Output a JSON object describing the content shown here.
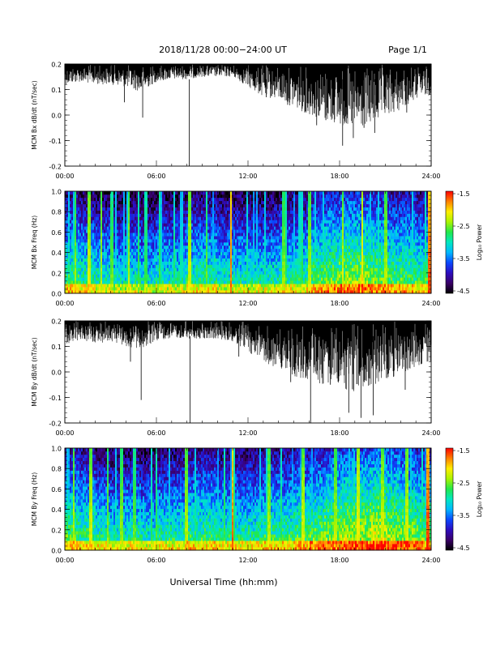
{
  "header": {
    "title": "2018/11/28   00:00−24:00 UT",
    "page_label": "Page 1/1"
  },
  "xaxis": {
    "label": "Universal Time (hh:mm)",
    "ticks": [
      "00:00",
      "06:00",
      "12:00",
      "18:00",
      "24:00"
    ],
    "range_hours": [
      0,
      24
    ]
  },
  "colorbar": {
    "label": "Log₁₀ Power",
    "ticks": [
      "-1.5",
      "-2.5",
      "-3.5",
      "-4.5"
    ],
    "range": [
      -4.5,
      -1.5
    ],
    "colors": [
      "#000000",
      "#3a0068",
      "#2d0dbf",
      "#0a48ff",
      "#00b8ff",
      "#00e8c0",
      "#22e84a",
      "#aaf400",
      "#ffee00",
      "#ff8000",
      "#ff0000"
    ]
  },
  "chart_data": [
    {
      "type": "line",
      "title": "",
      "ylabel": "MCM Bx dB/dt (nT/sec)",
      "ylim": [
        -0.2,
        0.2
      ],
      "yticks": [
        "0.2",
        "0.1",
        "0.0",
        "-0.1",
        "-0.2"
      ],
      "color": "#000000",
      "envelope": {
        "hours": [
          0,
          1,
          2,
          3,
          4,
          5,
          6,
          7,
          8,
          9,
          10,
          11,
          12,
          13,
          14,
          15,
          16,
          17,
          18,
          19,
          20,
          21,
          22,
          23,
          24
        ],
        "max": [
          0.2,
          0.2,
          0.2,
          0.2,
          0.2,
          0.2,
          0.2,
          0.2,
          0.2,
          0.2,
          0.2,
          0.2,
          0.2,
          0.2,
          0.2,
          0.2,
          0.2,
          0.2,
          0.2,
          0.2,
          0.2,
          0.2,
          0.2,
          0.2,
          0.2
        ],
        "min": [
          0.12,
          0.13,
          0.12,
          0.12,
          0.11,
          0.09,
          0.13,
          0.14,
          0.14,
          0.15,
          0.15,
          0.15,
          0.11,
          0.07,
          0.06,
          0.03,
          0.0,
          -0.02,
          -0.04,
          -0.06,
          -0.04,
          -0.01,
          0.02,
          0.06,
          0.08
        ]
      },
      "spikes": [
        {
          "hour": 3.9,
          "min": 0.05
        },
        {
          "hour": 5.1,
          "min": -0.01
        },
        {
          "hour": 8.15,
          "min": -0.2
        },
        {
          "hour": 13.2,
          "min": 0.07
        },
        {
          "hour": 14.6,
          "min": 0.04
        },
        {
          "hour": 16.5,
          "min": -0.04
        },
        {
          "hour": 17.1,
          "min": -0.02
        },
        {
          "hour": 18.2,
          "min": -0.12
        },
        {
          "hour": 18.9,
          "min": -0.09
        },
        {
          "hour": 19.6,
          "min": -0.05
        },
        {
          "hour": 20.3,
          "min": -0.07
        },
        {
          "hour": 22.4,
          "min": 0.01
        }
      ]
    },
    {
      "type": "heatmap",
      "title": "",
      "ylabel": "MCM Bx Freq (Hz)",
      "ylim": [
        0.0,
        1.0
      ],
      "yticks": [
        "1.0",
        "0.8",
        "0.6",
        "0.4",
        "0.2",
        "0.0"
      ],
      "zlim": [
        -4.5,
        -1.5
      ],
      "base_levels": [
        -3.3,
        -3.4,
        -3.5,
        -3.6,
        -3.5,
        -3.6,
        -3.5,
        -3.5,
        -3.4,
        -3.4,
        -3.5,
        -3.5,
        -3.5,
        -3.5,
        -3.4,
        -3.4,
        -3.2,
        -3.1,
        -3.0,
        -3.0,
        -3.1,
        -3.2,
        -3.2,
        -3.3
      ],
      "bursts": [
        {
          "hour": 0.7,
          "level": -2.4
        },
        {
          "hour": 1.6,
          "level": -2.2
        },
        {
          "hour": 2.4,
          "level": -2.3
        },
        {
          "hour": 3.1,
          "level": -2.5
        },
        {
          "hour": 4.2,
          "level": -2.3
        },
        {
          "hour": 5.3,
          "level": -2.6
        },
        {
          "hour": 6.2,
          "level": -2.6
        },
        {
          "hour": 8.2,
          "level": -2.2
        },
        {
          "hour": 9.3,
          "level": -2.5
        },
        {
          "hour": 10.9,
          "level": -1.7
        },
        {
          "hour": 14.3,
          "level": -2.4
        },
        {
          "hour": 16.0,
          "level": -2.3
        },
        {
          "hour": 18.2,
          "level": -2.2
        },
        {
          "hour": 19.5,
          "level": -2.0
        },
        {
          "hour": 21.0,
          "level": -2.3
        },
        {
          "hour": 23.9,
          "level": -1.6
        }
      ]
    },
    {
      "type": "line",
      "title": "",
      "ylabel": "MCM By dB/dt (nT/sec)",
      "ylim": [
        -0.2,
        0.2
      ],
      "yticks": [
        "0.2",
        "0.1",
        "0.0",
        "-0.1",
        "-0.2"
      ],
      "color": "#000000",
      "envelope": {
        "hours": [
          0,
          1,
          2,
          3,
          4,
          5,
          6,
          7,
          8,
          9,
          10,
          11,
          12,
          13,
          14,
          15,
          16,
          17,
          18,
          19,
          20,
          21,
          22,
          23,
          24
        ],
        "max": [
          0.2,
          0.2,
          0.2,
          0.2,
          0.2,
          0.2,
          0.2,
          0.2,
          0.2,
          0.2,
          0.2,
          0.2,
          0.2,
          0.2,
          0.2,
          0.2,
          0.2,
          0.2,
          0.2,
          0.2,
          0.2,
          0.2,
          0.2,
          0.2,
          0.2
        ],
        "min": [
          0.11,
          0.12,
          0.11,
          0.12,
          0.1,
          0.09,
          0.12,
          0.13,
          0.13,
          0.13,
          0.13,
          0.12,
          0.08,
          0.04,
          0.01,
          -0.02,
          -0.04,
          -0.06,
          -0.07,
          -0.08,
          -0.06,
          -0.03,
          -0.01,
          0.02,
          0.04
        ]
      },
      "spikes": [
        {
          "hour": 4.3,
          "min": 0.04
        },
        {
          "hour": 5.0,
          "min": -0.11
        },
        {
          "hour": 8.2,
          "min": -0.2
        },
        {
          "hour": 11.4,
          "min": 0.06
        },
        {
          "hour": 14.8,
          "min": -0.04
        },
        {
          "hour": 16.1,
          "min": -0.2
        },
        {
          "hour": 17.4,
          "min": -0.05
        },
        {
          "hour": 18.6,
          "min": -0.16
        },
        {
          "hour": 19.4,
          "min": -0.18
        },
        {
          "hour": 20.2,
          "min": -0.17
        },
        {
          "hour": 22.3,
          "min": -0.07
        }
      ]
    },
    {
      "type": "heatmap",
      "title": "",
      "ylabel": "MCM By Freq (Hz)",
      "ylim": [
        0.0,
        1.0
      ],
      "yticks": [
        "1.0",
        "0.8",
        "0.6",
        "0.4",
        "0.2",
        "0.0"
      ],
      "zlim": [
        -4.5,
        -1.5
      ],
      "base_levels": [
        -3.2,
        -3.3,
        -3.4,
        -3.5,
        -3.4,
        -3.5,
        -3.4,
        -3.4,
        -3.3,
        -3.3,
        -3.4,
        -3.4,
        -3.4,
        -3.3,
        -3.3,
        -3.2,
        -3.1,
        -3.0,
        -2.9,
        -2.9,
        -2.8,
        -2.9,
        -3.0,
        -3.1
      ],
      "bursts": [
        {
          "hour": 0.6,
          "level": -2.3
        },
        {
          "hour": 1.7,
          "level": -2.2
        },
        {
          "hour": 2.8,
          "level": -2.4
        },
        {
          "hour": 3.7,
          "level": -2.4
        },
        {
          "hour": 4.6,
          "level": -2.5
        },
        {
          "hour": 6.0,
          "level": -2.6
        },
        {
          "hour": 8.0,
          "level": -2.3
        },
        {
          "hour": 11.0,
          "level": -1.7
        },
        {
          "hour": 13.4,
          "level": -2.3
        },
        {
          "hour": 15.6,
          "level": -2.2
        },
        {
          "hour": 17.7,
          "level": -2.3
        },
        {
          "hour": 19.2,
          "level": -2.1
        },
        {
          "hour": 20.8,
          "level": -2.2
        },
        {
          "hour": 22.4,
          "level": -2.2
        },
        {
          "hour": 23.8,
          "level": -1.6
        }
      ]
    }
  ]
}
